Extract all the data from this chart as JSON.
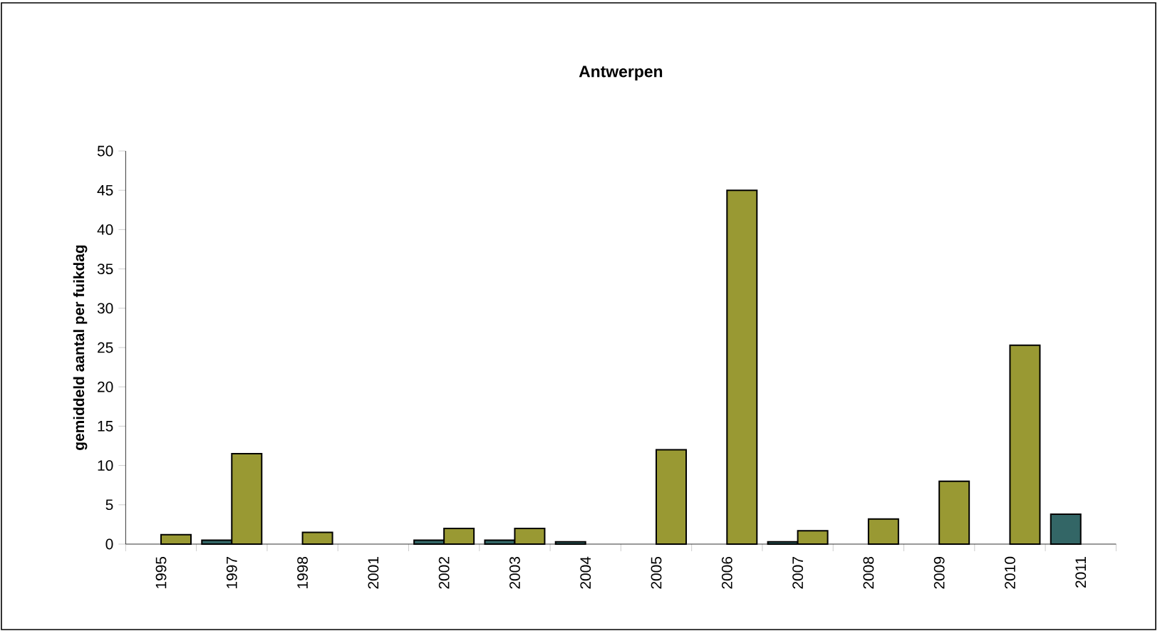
{
  "chart_data": {
    "type": "bar",
    "title": "Antwerpen",
    "ylabel": "gemiddeld aantal per fuikdag",
    "categories": [
      "1995",
      "1997",
      "1998",
      "2001",
      "2002",
      "2003",
      "2004",
      "2005",
      "2006",
      "2007",
      "2008",
      "2009",
      "2010",
      "2011"
    ],
    "series": [
      {
        "color": "#336666",
        "values": [
          null,
          0.5,
          null,
          null,
          0.5,
          0.5,
          0.3,
          null,
          null,
          0.3,
          null,
          null,
          null,
          3.8
        ]
      },
      {
        "color": "#999933",
        "values": [
          1.2,
          11.5,
          1.5,
          null,
          2.0,
          2.0,
          null,
          12.0,
          45.0,
          1.7,
          3.2,
          8.0,
          25.3,
          null
        ]
      }
    ],
    "ylim": [
      0,
      50
    ],
    "yticks": [
      0,
      5,
      10,
      15,
      20,
      25,
      30,
      35,
      40,
      45,
      50
    ]
  }
}
